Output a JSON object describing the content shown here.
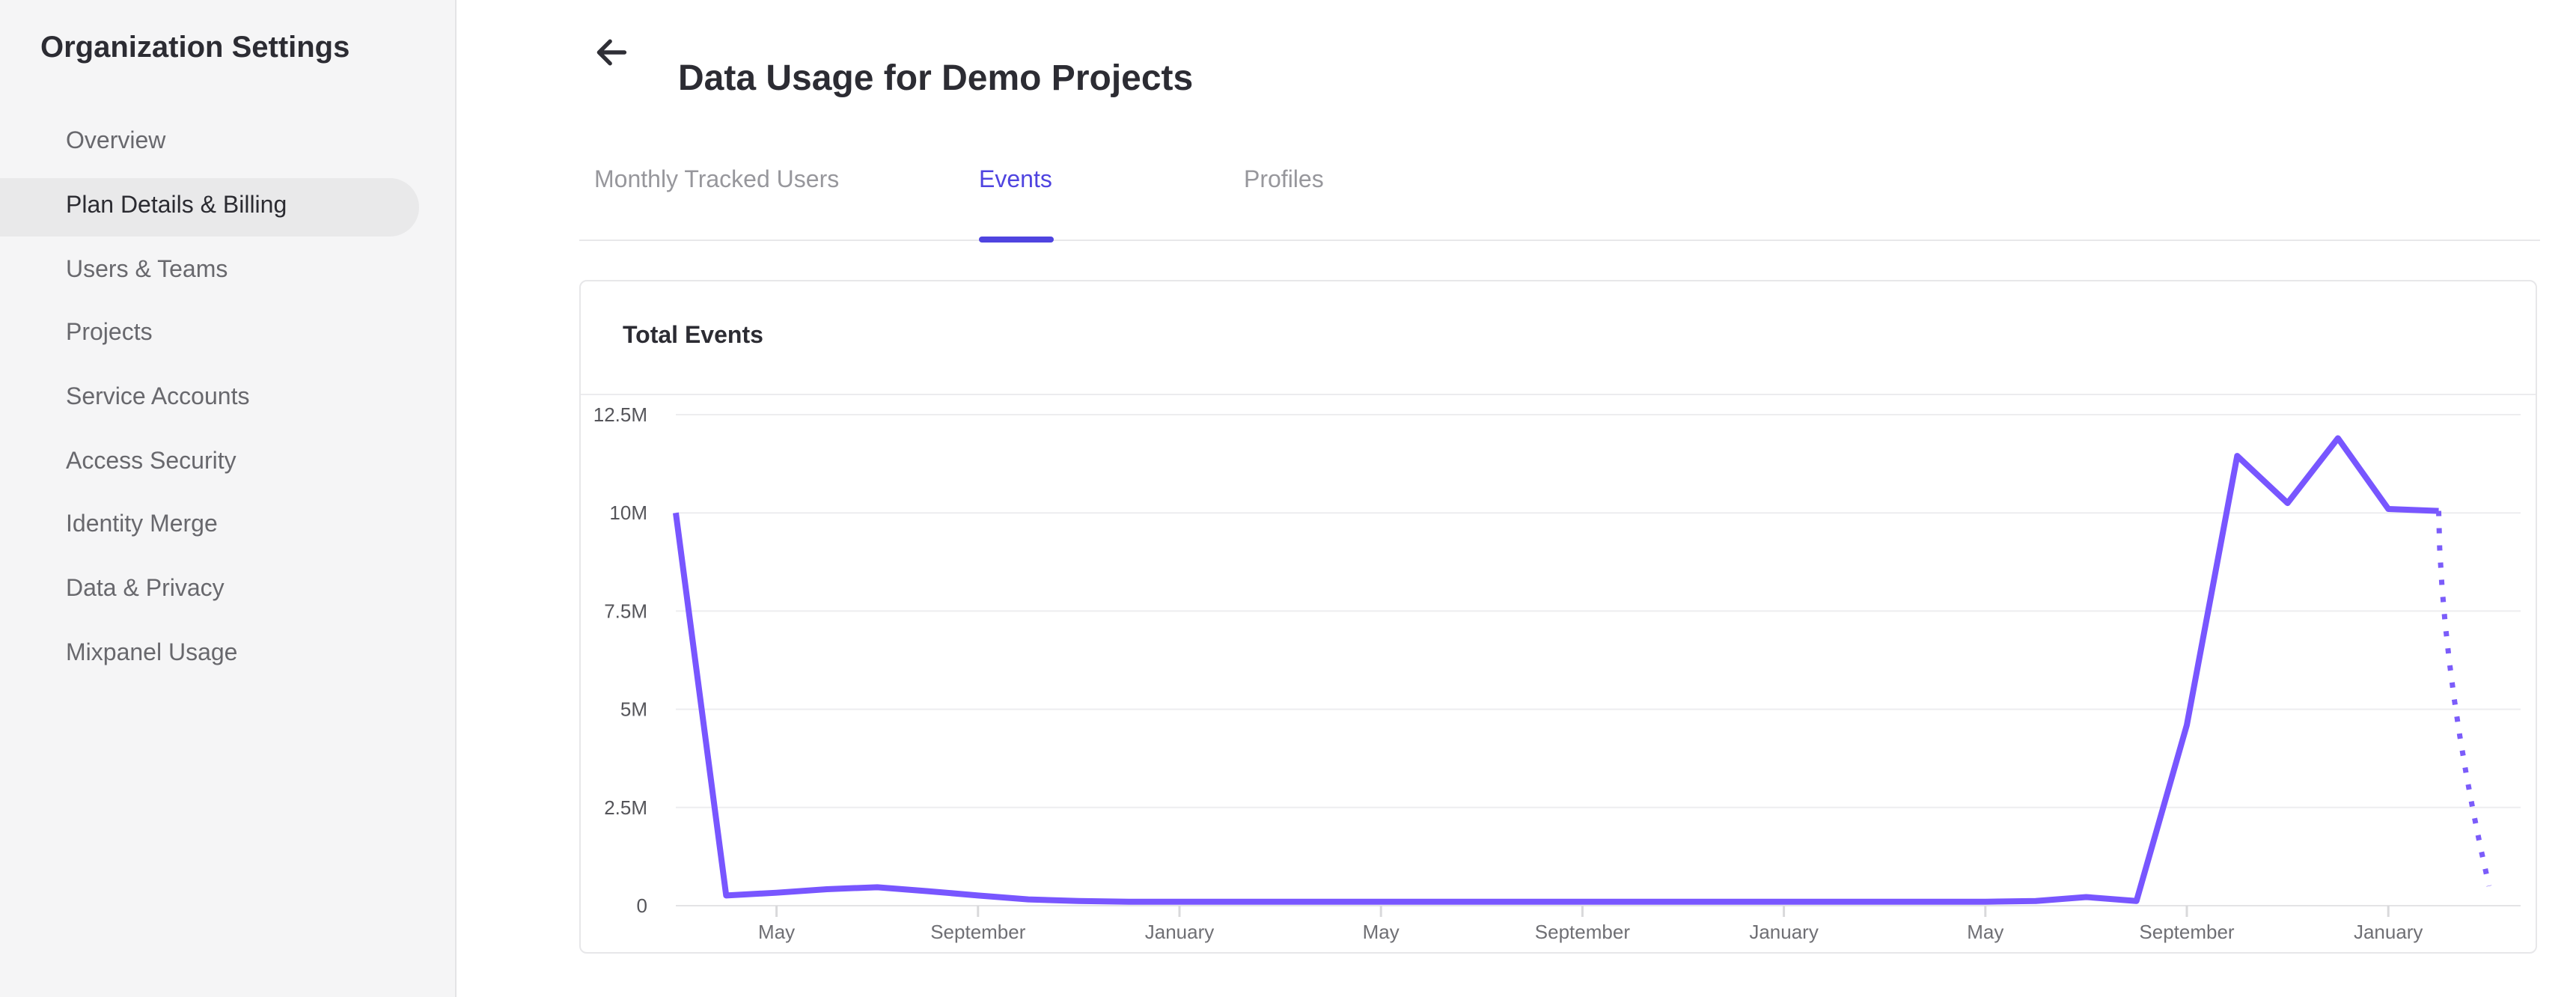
{
  "sidebar": {
    "title": "Organization Settings",
    "items": [
      {
        "label": "Overview",
        "active": false
      },
      {
        "label": "Plan Details & Billing",
        "active": true
      },
      {
        "label": "Users & Teams",
        "active": false
      },
      {
        "label": "Projects",
        "active": false
      },
      {
        "label": "Service Accounts",
        "active": false
      },
      {
        "label": "Access Security",
        "active": false
      },
      {
        "label": "Identity Merge",
        "active": false
      },
      {
        "label": "Data & Privacy",
        "active": false
      },
      {
        "label": "Mixpanel Usage",
        "active": false
      }
    ]
  },
  "header": {
    "back_icon": "arrow-left-icon",
    "title": "Data Usage for Demo Projects"
  },
  "tabs": [
    {
      "label": "Monthly Tracked Users",
      "active": false
    },
    {
      "label": "Events",
      "active": true
    },
    {
      "label": "Profiles",
      "active": false
    }
  ],
  "card": {
    "title": "Total Events"
  },
  "chart_data": {
    "type": "line",
    "title": "Total Events",
    "xlabel": "",
    "ylabel": "",
    "ylim": [
      0,
      12.5
    ],
    "grid": true,
    "legend": "none",
    "y_ticks": [
      {
        "label": "12.5M",
        "value": 12.5
      },
      {
        "label": "10M",
        "value": 10
      },
      {
        "label": "7.5M",
        "value": 7.5
      },
      {
        "label": "5M",
        "value": 5
      },
      {
        "label": "2.5M",
        "value": 2.5
      },
      {
        "label": "0",
        "value": 0
      }
    ],
    "x_ticks": [
      {
        "label": "May",
        "month_index": 2
      },
      {
        "label": "September",
        "month_index": 6
      },
      {
        "label": "January",
        "month_index": 10
      },
      {
        "label": "May",
        "month_index": 14
      },
      {
        "label": "September",
        "month_index": 18
      },
      {
        "label": "January",
        "month_index": 22
      },
      {
        "label": "May",
        "month_index": 26
      },
      {
        "label": "September",
        "month_index": 30
      },
      {
        "label": "January",
        "month_index": 34
      }
    ],
    "series": [
      {
        "name": "Total Events",
        "unit": "millions",
        "values_millions": [
          10.0,
          0.26,
          0.33,
          0.42,
          0.47,
          0.37,
          0.26,
          0.16,
          0.12,
          0.1,
          0.1,
          0.1,
          0.1,
          0.1,
          0.1,
          0.1,
          0.1,
          0.1,
          0.1,
          0.1,
          0.1,
          0.1,
          0.1,
          0.1,
          0.1,
          0.1,
          0.1,
          0.12,
          0.22,
          0.12,
          4.6,
          11.45,
          10.25,
          11.9,
          10.1,
          10.05
        ]
      }
    ],
    "projection": {
      "style": "dotted",
      "value_millions": 0.5
    },
    "colors": {
      "line": "#7856ff",
      "projection": "#7b5cfa",
      "grid": "#ededef",
      "axis": "#e3e3e5",
      "tick": "#d9d9db",
      "y_label": "#55555a",
      "x_label": "#6f6f74"
    }
  }
}
